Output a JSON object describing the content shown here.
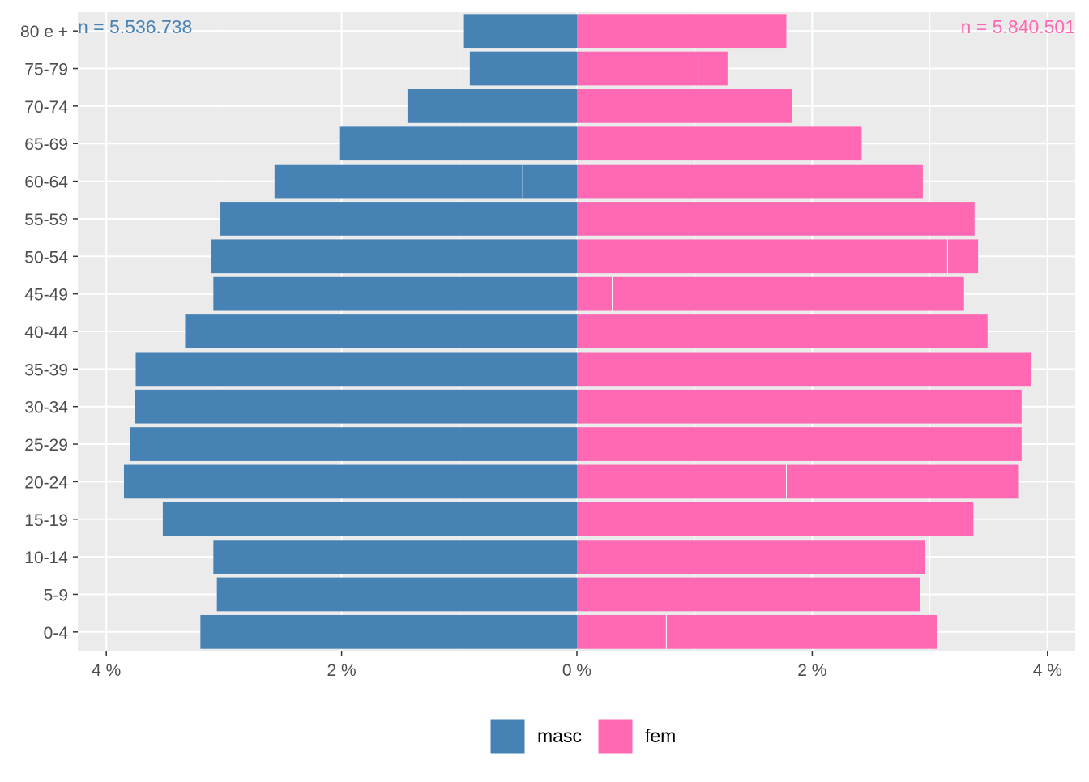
{
  "chart_data": {
    "type": "bar",
    "orientation": "horizontal",
    "layout": "population-pyramid",
    "categories": [
      "0-4",
      "5-9",
      "10-14",
      "15-19",
      "20-24",
      "25-29",
      "30-34",
      "35-39",
      "40-44",
      "45-49",
      "50-54",
      "55-59",
      "60-64",
      "65-69",
      "70-74",
      "75-79",
      "80 e +"
    ],
    "series": [
      {
        "name": "masc",
        "color": "#4682B4",
        "values": [
          3.2,
          3.06,
          3.09,
          3.52,
          3.85,
          3.8,
          3.76,
          3.75,
          3.33,
          3.09,
          3.11,
          3.03,
          2.57,
          2.02,
          1.44,
          0.91,
          0.96
        ],
        "inner_dividers": {
          "60-64": 0.46
        }
      },
      {
        "name": "fem",
        "color": "#FF69B4",
        "values": [
          3.06,
          2.92,
          2.96,
          3.37,
          3.75,
          3.78,
          3.78,
          3.86,
          3.49,
          3.29,
          3.41,
          3.38,
          2.94,
          2.42,
          1.83,
          1.28,
          1.78
        ],
        "inner_dividers": {
          "0-4": 0.76,
          "20-24": 1.78,
          "45-49": 0.3,
          "50-54": 3.15,
          "75-79": 1.03
        }
      }
    ],
    "xlim": [
      -4.25,
      4.25
    ],
    "x_ticks": [
      -4,
      -2,
      0,
      2,
      4
    ],
    "x_tick_labels": [
      "4 %",
      "2 %",
      "0 %",
      "2 %",
      "4 %"
    ],
    "annotations": {
      "left": "n = 5.536.738",
      "right": "n = 5.840.501"
    },
    "legend": {
      "position": "bottom",
      "entries": [
        "masc",
        "fem"
      ]
    },
    "grid": true,
    "panel_background": "#EBEBEB",
    "grid_color": "#FFFFFF",
    "axis_text_color": "#4D4D4D"
  }
}
